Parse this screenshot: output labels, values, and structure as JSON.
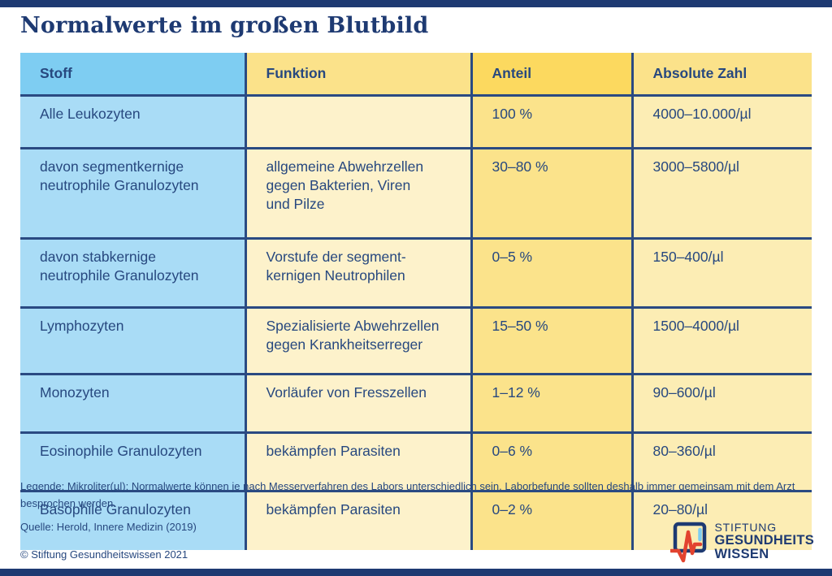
{
  "page": {
    "title": "Normalwerte im großen Blutbild"
  },
  "table": {
    "columns": [
      {
        "key": "stoff",
        "label": "Stoff"
      },
      {
        "key": "funktion",
        "label": "Funktion"
      },
      {
        "key": "anteil",
        "label": "Anteil"
      },
      {
        "key": "absolute",
        "label": "Absolute Zahl"
      }
    ],
    "rows": [
      {
        "stoff": "Alle Leukozyten",
        "funktion": "",
        "anteil": "100 %",
        "absolute": "4000–10.000/µl"
      },
      {
        "stoff": "davon segmentkernige\nneutrophile Granulozyten",
        "funktion": "allgemeine Abwehrzellen\ngegen Bakterien, Viren\nund Pilze",
        "anteil": "30–80 %",
        "absolute": "3000–5800/µl"
      },
      {
        "stoff": "davon stabkernige\nneutrophile Granulozyten",
        "funktion": "Vorstufe der segment-\nkernigen Neutrophilen",
        "anteil": "0–5 %",
        "absolute": "150–400/µl"
      },
      {
        "stoff": "Lymphozyten",
        "funktion": "Spezialisierte Abwehrzellen\ngegen Krankheitserreger",
        "anteil": "15–50 %",
        "absolute": "1500–4000/µl"
      },
      {
        "stoff": "Monozyten",
        "funktion": "Vorläufer von Fresszellen",
        "anteil": "1–12 %",
        "absolute": "90–600/µl"
      },
      {
        "stoff": "Eosinophile Granulozyten",
        "funktion": "bekämpfen Parasiten",
        "anteil": "0–6 %",
        "absolute": "80–360/µl"
      },
      {
        "stoff": "Basophile Granulozyten",
        "funktion": "bekämpfen Parasiten",
        "anteil": "0–2 %",
        "absolute": "20–80/µl"
      }
    ]
  },
  "footer": {
    "legend": "Legende: Mikroliter(µl); Normalwerte können je nach Messerverfahren des Labors unterschiedlich sein. Laborbefunde sollten deshalb immer gemeinsam mit dem Arzt besprochen werden.",
    "source": "Quelle: Herold, Innere Medizin (2019)",
    "copyright": "© Stiftung Gesundheitswissen 2021"
  },
  "logo": {
    "line1": "STIFTUNG",
    "line2": "GESUNDHEITS",
    "line3": "WISSEN"
  },
  "colors": {
    "navy": "#1e3a72",
    "table_line": "#2a4a82",
    "text": "#27487f",
    "header_blue": "#7ecdf2",
    "body_blue": "#a9dcf6",
    "header_yellow": "#fbe28a",
    "header_gold": "#fcd95f",
    "body_cream": "#fdf2cb",
    "body_gold": "#fbe38b",
    "body_cream_dark": "#fcedb4",
    "logo_red": "#e2432f",
    "logo_lightblue": "#7ecdf2"
  }
}
